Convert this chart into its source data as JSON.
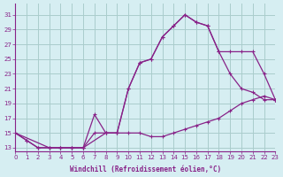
{
  "xlabel": "Windchill (Refroidissement éolien,°C)",
  "bg_color": "#d6eef2",
  "grid_color": "#aacccc",
  "line_color": "#882288",
  "xlim": [
    0,
    23
  ],
  "ylim": [
    13,
    32
  ],
  "yticks": [
    13,
    15,
    17,
    19,
    21,
    23,
    25,
    27,
    29,
    31
  ],
  "xticks": [
    0,
    1,
    2,
    3,
    4,
    5,
    6,
    7,
    8,
    9,
    10,
    11,
    12,
    13,
    14,
    15,
    16,
    17,
    18,
    19,
    20,
    21,
    22,
    23
  ],
  "series1_x": [
    0,
    1,
    2,
    3,
    4,
    5,
    6,
    7,
    8,
    9,
    10,
    11,
    12,
    13,
    14,
    15,
    16,
    17,
    18,
    19,
    20,
    21,
    22,
    23
  ],
  "series1_y": [
    15,
    14,
    13,
    13,
    13,
    13,
    13,
    17.5,
    15,
    15,
    15,
    15,
    14.5,
    14.5,
    15,
    15.5,
    16,
    16.5,
    17,
    18,
    19,
    19.5,
    20,
    19.5
  ],
  "series2_x": [
    0,
    1,
    2,
    3,
    4,
    5,
    6,
    7,
    8,
    9,
    10,
    11,
    12,
    13,
    14,
    15,
    16,
    17,
    18,
    19,
    20,
    21,
    22,
    23
  ],
  "series2_y": [
    15,
    14,
    13,
    13,
    13,
    13,
    13,
    15,
    15,
    15,
    21,
    24.5,
    25,
    28,
    29.5,
    31,
    30,
    29.5,
    26,
    23,
    21,
    20.5,
    19.5,
    19.5
  ],
  "series3_x": [
    0,
    3,
    4,
    5,
    6,
    8,
    9,
    10,
    11,
    12,
    13,
    14,
    15,
    16,
    17,
    18,
    19,
    20,
    21,
    22,
    23
  ],
  "series3_y": [
    15,
    13,
    13,
    13,
    13,
    15,
    15,
    21,
    24.5,
    25,
    28,
    29.5,
    31,
    30,
    29.5,
    26,
    26,
    26,
    26,
    23,
    19.5
  ]
}
